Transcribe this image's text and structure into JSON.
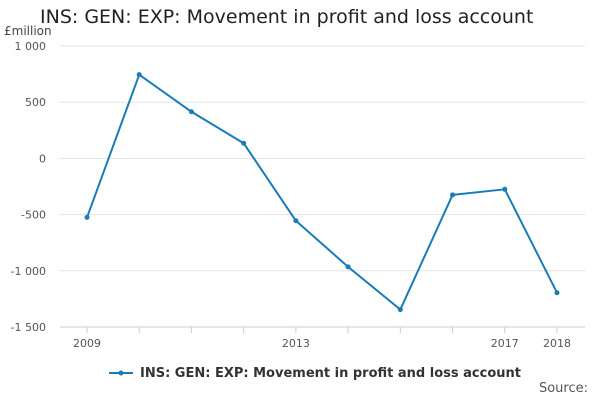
{
  "chart_data": {
    "type": "line",
    "title": "INS: GEN: EXP: Movement in profit and loss account",
    "ylabel": "£million",
    "xlabel": "",
    "ylim": [
      -1500,
      1000
    ],
    "xlim": [
      2009,
      2018
    ],
    "yticks": [
      1000,
      500,
      0,
      -500,
      -1000,
      -1500
    ],
    "ytick_labels": [
      "1 000",
      "500",
      "0",
      "-500",
      "-1 000",
      "-1 500"
    ],
    "xticks": [
      2009,
      2010,
      2011,
      2012,
      2013,
      2014,
      2015,
      2016,
      2017,
      2018
    ],
    "xtick_labels": [
      "2009",
      "",
      "",
      "",
      "2013",
      "",
      "",
      "",
      "2017",
      "2018"
    ],
    "grid": true,
    "legend_position": "bottom",
    "series": [
      {
        "name": "INS: GEN: EXP: Movement in profit and loss account",
        "color": "#1a7bb8",
        "x": [
          2009,
          2010,
          2011,
          2012,
          2013,
          2014,
          2015,
          2016,
          2017,
          2018
        ],
        "values": [
          -525,
          745,
          415,
          135,
          -555,
          -965,
          -1345,
          -325,
          -275,
          -1195
        ]
      }
    ]
  },
  "footer": {
    "source": "Source:"
  }
}
